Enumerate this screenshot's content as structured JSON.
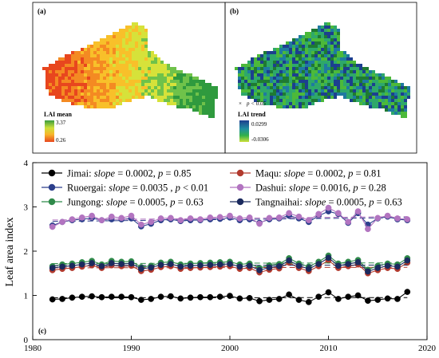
{
  "panel_a": {
    "label": "(a)",
    "legend_title": "LAI mean",
    "legend_max": "3.37",
    "legend_min": "0.26",
    "colors": [
      "#e8461e",
      "#f48a22",
      "#f8c02a",
      "#d6e23a",
      "#6fc24a",
      "#2f9a3e"
    ]
  },
  "panel_b": {
    "label": "(b)",
    "sig_marker": "×",
    "sig_text": "p < 0.05",
    "legend_title": "LAI trend",
    "legend_max": "0.0299",
    "legend_min": "-0.0306",
    "colors": [
      "#1c3f8f",
      "#1f7aa0",
      "#2ea86a",
      "#4cb93a",
      "#1e7a32"
    ]
  },
  "chart_data": {
    "type": "line",
    "panel_label": "(c)",
    "title": "",
    "xlabel": "",
    "ylabel": "Leaf area index",
    "xlim": [
      1980,
      2020
    ],
    "ylim": [
      0,
      4
    ],
    "xticks": [
      1980,
      1990,
      2000,
      2010,
      2020
    ],
    "yticks": [
      0,
      1,
      2,
      3,
      4
    ],
    "legend_placement": "top",
    "x": [
      1982,
      1983,
      1984,
      1985,
      1986,
      1987,
      1988,
      1989,
      1990,
      1991,
      1992,
      1993,
      1994,
      1995,
      1996,
      1997,
      1998,
      1999,
      2000,
      2001,
      2002,
      2003,
      2004,
      2005,
      2006,
      2007,
      2008,
      2009,
      2010,
      2011,
      2012,
      2013,
      2014,
      2015,
      2016,
      2017,
      2018
    ],
    "series": [
      {
        "name": "Jimai",
        "slope": "0.0002",
        "p": "= 0.85",
        "color": "#000000",
        "values": [
          0.91,
          0.92,
          0.95,
          0.97,
          0.98,
          0.96,
          0.97,
          0.97,
          0.96,
          0.9,
          0.92,
          0.97,
          0.98,
          0.93,
          0.95,
          0.96,
          0.96,
          0.97,
          0.99,
          0.93,
          0.94,
          0.87,
          0.9,
          0.92,
          1.02,
          0.9,
          0.85,
          0.97,
          1.07,
          0.92,
          0.97,
          1.0,
          0.88,
          0.9,
          0.93,
          0.92,
          1.08
        ]
      },
      {
        "name": "Maqu",
        "slope": "0.0002",
        "p": "= 0.81",
        "color": "#b23a2e",
        "values": [
          1.57,
          1.6,
          1.62,
          1.65,
          1.68,
          1.62,
          1.68,
          1.66,
          1.67,
          1.55,
          1.58,
          1.64,
          1.66,
          1.6,
          1.62,
          1.63,
          1.64,
          1.65,
          1.66,
          1.6,
          1.62,
          1.52,
          1.58,
          1.61,
          1.74,
          1.62,
          1.55,
          1.66,
          1.79,
          1.62,
          1.66,
          1.7,
          1.5,
          1.57,
          1.62,
          1.6,
          1.74
        ]
      },
      {
        "name": "Ruoergai",
        "slope": "0.0035",
        "p": "< 0.01",
        "color": "#2c3f8c",
        "values": [
          2.58,
          2.66,
          2.7,
          2.72,
          2.75,
          2.7,
          2.72,
          2.72,
          2.74,
          2.56,
          2.62,
          2.7,
          2.72,
          2.68,
          2.7,
          2.7,
          2.72,
          2.73,
          2.76,
          2.7,
          2.72,
          2.64,
          2.72,
          2.74,
          2.8,
          2.74,
          2.66,
          2.8,
          2.9,
          2.84,
          2.64,
          2.86,
          2.6,
          2.74,
          2.78,
          2.72,
          2.7
        ]
      },
      {
        "name": "Dashui",
        "slope": "0.0016",
        "p": "= 0.28",
        "color": "#b274c0",
        "values": [
          2.55,
          2.66,
          2.72,
          2.76,
          2.8,
          2.7,
          2.78,
          2.75,
          2.8,
          2.6,
          2.66,
          2.74,
          2.75,
          2.7,
          2.74,
          2.72,
          2.76,
          2.77,
          2.8,
          2.74,
          2.76,
          2.62,
          2.75,
          2.76,
          2.86,
          2.78,
          2.7,
          2.84,
          2.98,
          2.86,
          2.66,
          2.9,
          2.5,
          2.75,
          2.8,
          2.74,
          2.72
        ]
      },
      {
        "name": "Jungong",
        "slope": "0.0005",
        "p": "= 0.63",
        "color": "#2f8a4a",
        "values": [
          1.66,
          1.7,
          1.72,
          1.75,
          1.78,
          1.7,
          1.78,
          1.76,
          1.77,
          1.64,
          1.67,
          1.74,
          1.76,
          1.7,
          1.72,
          1.73,
          1.74,
          1.75,
          1.76,
          1.7,
          1.72,
          1.62,
          1.68,
          1.71,
          1.84,
          1.72,
          1.65,
          1.76,
          1.9,
          1.72,
          1.76,
          1.8,
          1.58,
          1.67,
          1.72,
          1.7,
          1.84
        ]
      },
      {
        "name": "Tangnaihai",
        "slope": "0.0005",
        "p": "= 0.63",
        "color": "#1b2a5e",
        "values": [
          1.62,
          1.65,
          1.67,
          1.7,
          1.73,
          1.66,
          1.73,
          1.71,
          1.72,
          1.6,
          1.63,
          1.69,
          1.71,
          1.65,
          1.67,
          1.68,
          1.69,
          1.7,
          1.71,
          1.65,
          1.67,
          1.57,
          1.63,
          1.66,
          1.79,
          1.67,
          1.6,
          1.71,
          1.85,
          1.67,
          1.71,
          1.75,
          1.54,
          1.62,
          1.67,
          1.65,
          1.79
        ]
      }
    ]
  }
}
